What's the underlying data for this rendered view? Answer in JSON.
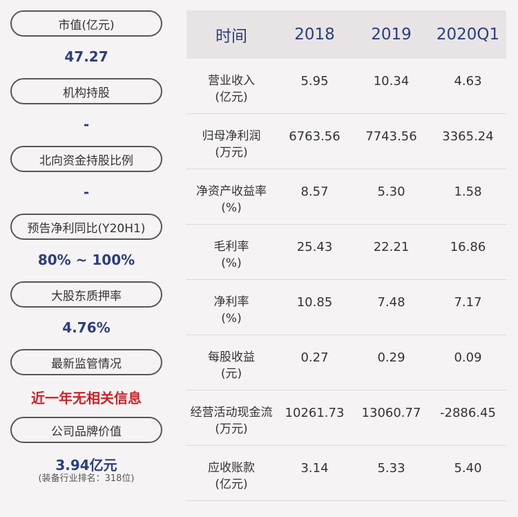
{
  "left_panel": {
    "items": [
      {
        "label": "市值(亿元)",
        "value": "47.27"
      },
      {
        "label": "机构持股",
        "value": "-"
      },
      {
        "label": "北向资金持股比例",
        "value": "-"
      },
      {
        "label": "预告净利同比(Y20H1)",
        "value": "80% ~ 100%"
      },
      {
        "label": "大股东质押率",
        "value": "4.76%"
      },
      {
        "label": "最新监管情况",
        "value": "近一年无相关信息"
      },
      {
        "label": "公司品牌价值",
        "value": "3.94亿元",
        "note": "(装备行业排名：318位)"
      }
    ]
  },
  "table": {
    "headers": [
      "时间",
      "2018",
      "2019",
      "2020Q1"
    ],
    "rows": [
      {
        "name": "营业收入",
        "unit": "(亿元)",
        "values": [
          "5.95",
          "10.34",
          "4.63"
        ]
      },
      {
        "name": "归母净利润",
        "unit": "(万元)",
        "values": [
          "6763.56",
          "7743.56",
          "3365.24"
        ]
      },
      {
        "name": "净资产收益率",
        "unit": "(%)",
        "values": [
          "8.57",
          "5.30",
          "1.58"
        ]
      },
      {
        "name": "毛利率",
        "unit": "(%)",
        "values": [
          "25.43",
          "22.21",
          "16.86"
        ]
      },
      {
        "name": "净利率",
        "unit": "(%)",
        "values": [
          "10.85",
          "7.48",
          "7.17"
        ]
      },
      {
        "name": "每股收益",
        "unit": "(元)",
        "values": [
          "0.27",
          "0.29",
          "0.09"
        ]
      },
      {
        "name": "经营活动现金流",
        "unit": "(万元)",
        "values": [
          "10261.73",
          "13060.77",
          "-2886.45"
        ]
      },
      {
        "name": "应收账款",
        "unit": "(亿元)",
        "values": [
          "3.14",
          "5.33",
          "5.40"
        ]
      }
    ]
  },
  "colors": {
    "value_blue": "#2c3e7a",
    "alert_red": "#c9242b",
    "header_bg": "#e8e4e6"
  }
}
